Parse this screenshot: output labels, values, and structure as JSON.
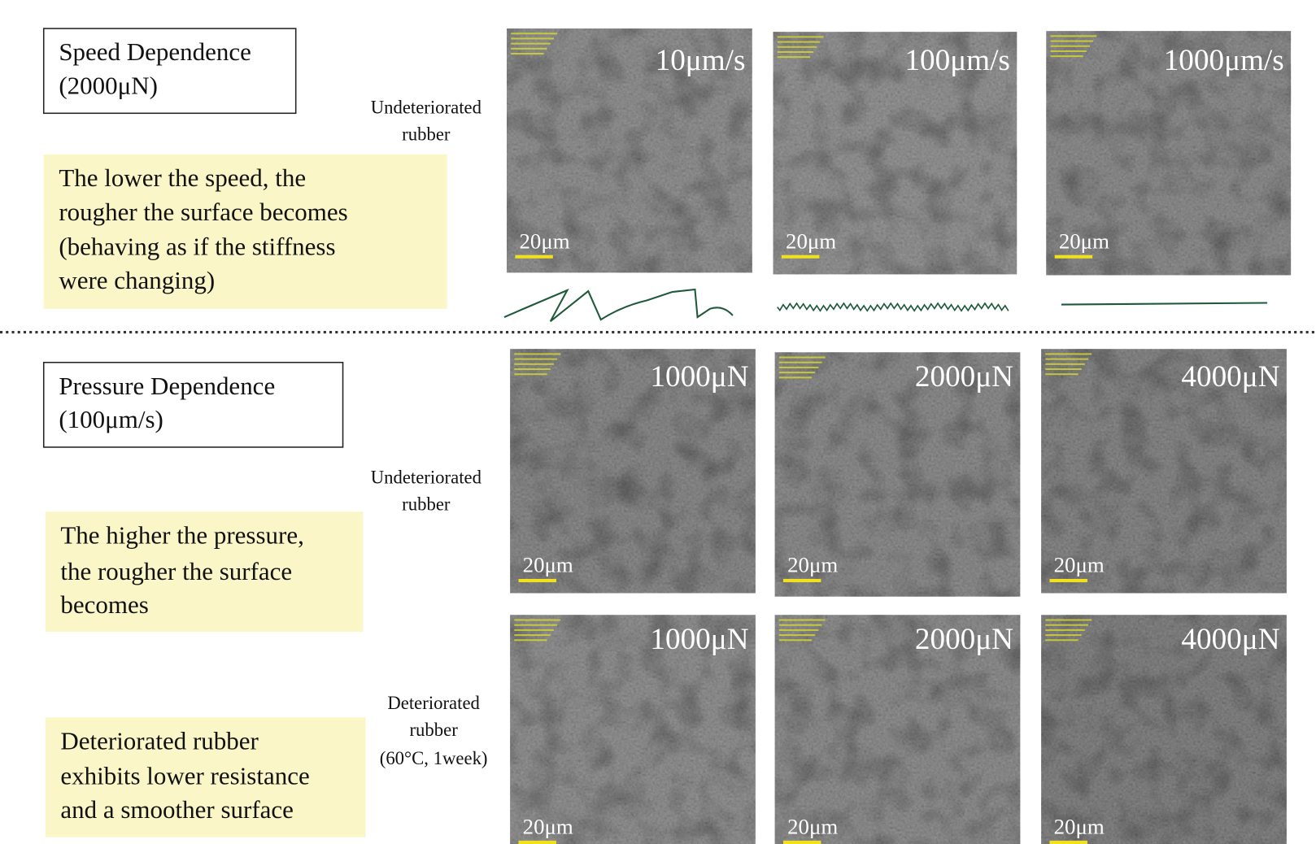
{
  "speed_section": {
    "title": [
      "Speed Dependence",
      "(2000μN)"
    ],
    "note": [
      "The lower the speed, the",
      "rougher the surface becomes",
      "(behaving as if the stiffness",
      "were changing)"
    ],
    "row_label": [
      "Undeteriorated",
      "rubber"
    ],
    "images": [
      {
        "label": "10μm/s",
        "scale": "20μm"
      },
      {
        "label": "100μm/s",
        "scale": "20μm"
      },
      {
        "label": "1000μm/s",
        "scale": "20μm"
      }
    ]
  },
  "pressure_section": {
    "title": [
      "Pressure Dependence",
      "(100μm/s)"
    ],
    "rows": [
      {
        "row_label": [
          "Undeteriorated",
          "rubber"
        ],
        "note": [
          "The higher the pressure,",
          "the rougher the surface",
          "becomes"
        ],
        "images": [
          {
            "label": "1000μN",
            "scale": "20μm"
          },
          {
            "label": "2000μN",
            "scale": "20μm"
          },
          {
            "label": "4000μN",
            "scale": "20μm"
          }
        ]
      },
      {
        "row_label": [
          "Deteriorated",
          "rubber",
          "(60°C, 1week)"
        ],
        "note": [
          "Deteriorated rubber",
          "exhibits lower resistance",
          "and a smoother surface"
        ],
        "images": [
          {
            "label": "1000μN",
            "scale": "20μm"
          },
          {
            "label": "2000μN",
            "scale": "20μm"
          },
          {
            "label": "4000μN",
            "scale": "20μm"
          }
        ]
      }
    ]
  }
}
